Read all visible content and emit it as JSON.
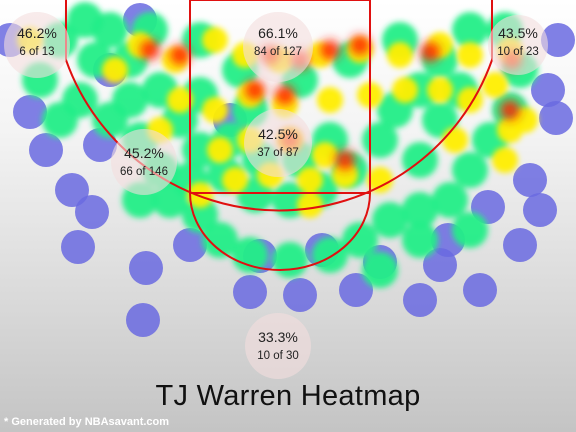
{
  "colors": {
    "court_lines": "#e01010",
    "cold": "#6a6ae0",
    "cool": "#22ee88",
    "warm": "#ffee00",
    "hot": "#ff2200",
    "bubble": "#f3dddd"
  },
  "chart_data": {
    "type": "heatmap",
    "title": "TJ Warren Heatmap",
    "zones": [
      {
        "name": "left corner three",
        "pct": "46.2%",
        "made_of_attempts": "6 of 13",
        "made": 6,
        "attempts": 13
      },
      {
        "name": "paint non-restricted top",
        "pct": "66.1%",
        "made_of_attempts": "84 of 127",
        "made": 84,
        "attempts": 127
      },
      {
        "name": "right corner three",
        "pct": "43.5%",
        "made_of_attempts": "10 of 23",
        "made": 10,
        "attempts": 23
      },
      {
        "name": "left baseline mid-range",
        "pct": "45.2%",
        "made_of_attempts": "66 of 146",
        "made": 66,
        "attempts": 146
      },
      {
        "name": "paint lower",
        "pct": "42.5%",
        "made_of_attempts": "37 of 87",
        "made": 37,
        "attempts": 87
      },
      {
        "name": "above the break three",
        "pct": "33.3%",
        "made_of_attempts": "10 of 30",
        "made": 10,
        "attempts": 30
      }
    ]
  },
  "footer": {
    "credit": "* Generated by NBAsavant.com"
  }
}
